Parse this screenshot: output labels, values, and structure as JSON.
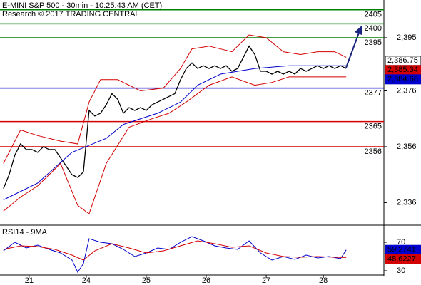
{
  "chart_data": [
    {
      "type": "line",
      "title": "E-MINI S&P 500 - 30min - 10:25:43 AM (CET)",
      "subtitle": "Research © 2017 TRADING CENTRAL",
      "xlim": [
        -0.6,
        66.6
      ],
      "ylim": [
        2328.2,
        2408.5
      ],
      "yticks": [
        {
          "value": 2336,
          "label": "2,336"
        },
        {
          "value": 2356,
          "label": "2,356"
        },
        {
          "value": 2376,
          "label": "2,376"
        },
        {
          "value": 2395,
          "label": "2,395"
        }
      ],
      "series": [
        {
          "color": "#000000",
          "width": 1.3,
          "x": [
            0,
            1,
            2,
            3,
            4,
            5,
            6,
            7,
            8,
            9,
            10,
            11,
            12,
            13,
            14,
            15,
            16,
            17,
            18,
            19,
            20,
            21,
            22,
            23,
            24,
            25,
            26,
            27,
            28,
            29,
            30,
            31,
            32,
            33,
            34,
            35,
            36,
            37,
            38,
            39,
            40,
            41,
            42,
            43,
            44,
            45,
            46,
            47,
            48,
            49,
            50,
            51,
            52,
            53,
            54,
            55,
            56,
            57,
            58,
            59,
            60
          ],
          "values": [
            2341,
            2346,
            2353,
            2357,
            2355,
            2355,
            2354,
            2356,
            2355,
            2355,
            2352,
            2349,
            2346,
            2345,
            2347,
            2369,
            2367,
            2368,
            2371,
            2375,
            2373,
            2368,
            2370,
            2369,
            2370,
            2369,
            2371,
            2372,
            2373,
            2374,
            2375,
            2380,
            2384,
            2386,
            2384,
            2385,
            2384,
            2385,
            2384,
            2385,
            2383,
            2384,
            2388,
            2392,
            2389,
            2383,
            2383,
            2382,
            2383,
            2382,
            2383,
            2382,
            2384,
            2383,
            2384,
            2385,
            2384,
            2385,
            2384,
            2385,
            2384
          ]
        },
        {
          "color": "#d40000",
          "width": 1,
          "x": [
            0,
            3,
            6,
            10,
            13,
            15,
            17,
            20,
            24,
            28,
            31,
            33,
            36,
            40,
            43,
            46,
            49,
            52,
            55,
            58,
            60
          ],
          "values": [
            2350,
            2362,
            2360,
            2358,
            2357,
            2372,
            2380,
            2380,
            2376,
            2377,
            2384,
            2391,
            2392,
            2390,
            2396,
            2395,
            2390,
            2389,
            2390,
            2390,
            2388
          ]
        },
        {
          "color": "#0000cc",
          "width": 1,
          "x": [
            0,
            6,
            12,
            18,
            21,
            27,
            31,
            34,
            38,
            44,
            50,
            60
          ],
          "values": [
            2337,
            2343,
            2354,
            2359,
            2364,
            2368,
            2372,
            2378,
            2382,
            2384,
            2385,
            2385
          ]
        },
        {
          "color": "#d40000",
          "width": 1,
          "x": [
            0,
            3,
            6,
            10,
            13,
            15,
            18,
            22,
            26,
            29,
            32,
            36,
            40,
            44,
            47,
            50,
            54,
            60
          ],
          "values": [
            2333,
            2338,
            2342,
            2350,
            2335,
            2332,
            2350,
            2363,
            2366,
            2368,
            2372,
            2378,
            2381,
            2378,
            2379,
            2381,
            2381,
            2381
          ]
        }
      ],
      "levels": [
        {
          "value": 2405,
          "label": "2405",
          "color": "#008000"
        },
        {
          "value": 2400,
          "label": "2400",
          "color": "#008000"
        },
        {
          "value": 2395,
          "label": "2395",
          "color": "#008000"
        },
        {
          "value": 2377,
          "label": "2377",
          "color": "#0000cc"
        },
        {
          "value": 2365,
          "label": "2365",
          "color": "#d40000"
        },
        {
          "value": 2356,
          "label": "2356",
          "color": "#d40000"
        }
      ],
      "price_tags": [
        {
          "value": 2386.75,
          "label": "2,386.75",
          "color": "#000000"
        },
        {
          "value": 2385.34,
          "label": "2,385.34",
          "color": "#d40000"
        },
        {
          "value": 2384.68,
          "label": "2,384.68",
          "color": "#0000cc"
        }
      ]
    },
    {
      "type": "line",
      "title": "RSI14 - 9MA",
      "xlim": [
        -0.6,
        66.6
      ],
      "ylim": [
        24,
        92
      ],
      "yticks": [
        30,
        70
      ],
      "xticks": [
        {
          "value": 4.5,
          "label": "21"
        },
        {
          "value": 14.5,
          "label": "24"
        },
        {
          "value": 25,
          "label": "25"
        },
        {
          "value": 35.5,
          "label": "26"
        },
        {
          "value": 46,
          "label": "27"
        },
        {
          "value": 56,
          "label": "28"
        }
      ],
      "series": [
        {
          "color": "#0000cc",
          "width": 1,
          "x": [
            0,
            2,
            4,
            6,
            8,
            10,
            12,
            13,
            14,
            15,
            17,
            19,
            21,
            23,
            25,
            27,
            29,
            31,
            33,
            35,
            37,
            39,
            41,
            43,
            45,
            47,
            49,
            51,
            53,
            55,
            57,
            59,
            60
          ],
          "values": [
            58,
            70,
            62,
            66,
            60,
            55,
            45,
            28,
            40,
            75,
            70,
            68,
            60,
            50,
            55,
            62,
            60,
            70,
            78,
            72,
            65,
            62,
            60,
            72,
            55,
            45,
            50,
            46,
            52,
            48,
            50,
            47,
            59.2741
          ]
        },
        {
          "color": "#d40000",
          "width": 1,
          "x": [
            0,
            3,
            6,
            9,
            12,
            14,
            16,
            19,
            22,
            25,
            28,
            31,
            34,
            37,
            40,
            43,
            46,
            49,
            52,
            55,
            58,
            60
          ],
          "values": [
            60,
            65,
            64,
            60,
            52,
            45,
            58,
            68,
            62,
            55,
            58,
            65,
            72,
            68,
            63,
            65,
            55,
            50,
            49,
            50,
            49,
            48.6227
          ]
        }
      ],
      "price_tags": [
        {
          "value": 59.2741,
          "label": "59.2741",
          "color": "#0000cc"
        },
        {
          "value": 48.6227,
          "label": "48.6227",
          "color": "#d40000"
        }
      ]
    }
  ]
}
